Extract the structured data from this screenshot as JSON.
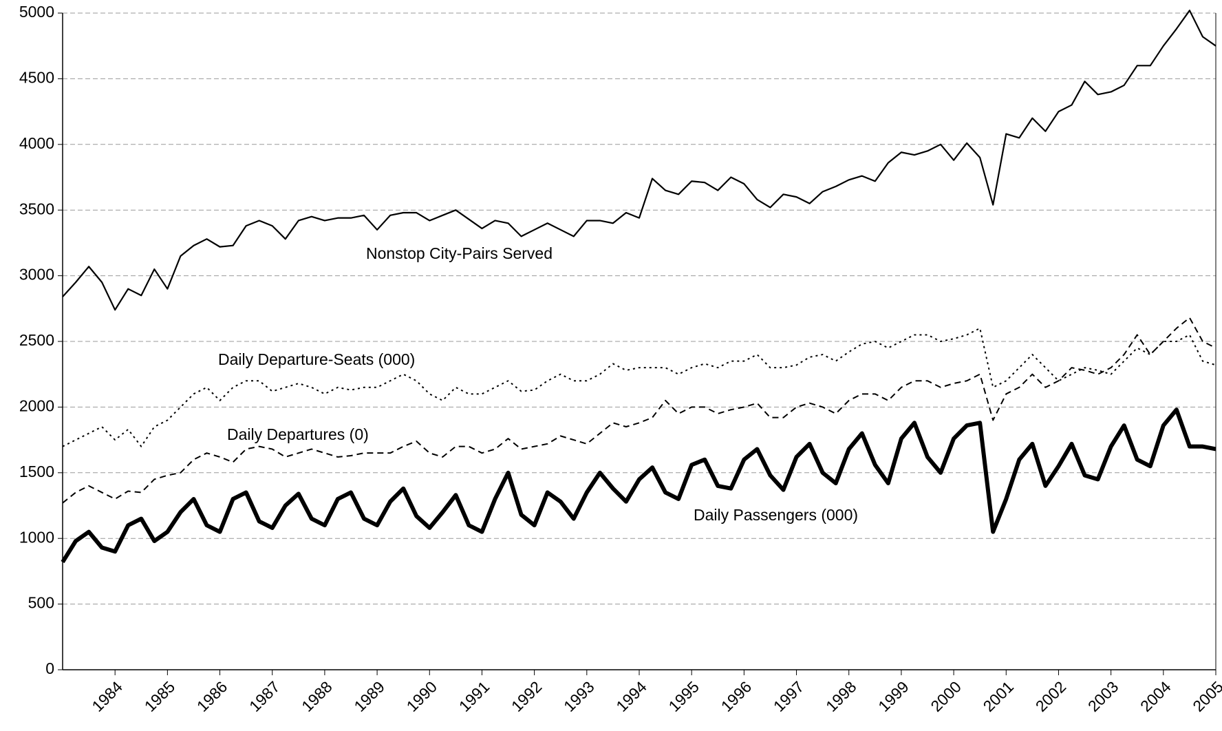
{
  "chart_data": {
    "type": "line",
    "x": [
      1983,
      1983.25,
      1983.5,
      1983.75,
      1984,
      1984.25,
      1984.5,
      1984.75,
      1985,
      1985.25,
      1985.5,
      1985.75,
      1986,
      1986.25,
      1986.5,
      1986.75,
      1987,
      1987.25,
      1987.5,
      1987.75,
      1988,
      1988.25,
      1988.5,
      1988.75,
      1989,
      1989.25,
      1989.5,
      1989.75,
      1990,
      1990.25,
      1990.5,
      1990.75,
      1991,
      1991.25,
      1991.5,
      1991.75,
      1992,
      1992.25,
      1992.5,
      1992.75,
      1993,
      1993.25,
      1993.5,
      1993.75,
      1994,
      1994.25,
      1994.5,
      1994.75,
      1995,
      1995.25,
      1995.5,
      1995.75,
      1996,
      1996.25,
      1996.5,
      1996.75,
      1997,
      1997.25,
      1997.5,
      1997.75,
      1998,
      1998.25,
      1998.5,
      1998.75,
      1999,
      1999.25,
      1999.5,
      1999.75,
      2000,
      2000.25,
      2000.5,
      2000.75,
      2001,
      2001.25,
      2001.5,
      2001.75,
      2002,
      2002.25,
      2002.5,
      2002.75,
      2003,
      2003.25,
      2003.5,
      2003.75,
      2004,
      2004.25,
      2004.5,
      2004.75,
      2005
    ],
    "series": [
      {
        "name": "Nonstop City-Pairs Served",
        "color": "#000000",
        "style": "solid",
        "values": [
          2840,
          2950,
          3070,
          2950,
          2740,
          2900,
          2850,
          3050,
          2900,
          3150,
          3230,
          3280,
          3220,
          3230,
          3380,
          3420,
          3380,
          3280,
          3420,
          3450,
          3420,
          3440,
          3440,
          3460,
          3350,
          3460,
          3480,
          3480,
          3420,
          3460,
          3500,
          3430,
          3360,
          3420,
          3400,
          3300,
          3350,
          3400,
          3350,
          3300,
          3420,
          3420,
          3400,
          3480,
          3440,
          3740,
          3650,
          3620,
          3720,
          3710,
          3650,
          3750,
          3700,
          3580,
          3520,
          3620,
          3600,
          3550,
          3640,
          3680,
          3730,
          3760,
          3720,
          3860,
          3940,
          3920,
          3950,
          4000,
          3880,
          4010,
          3900,
          3540,
          4080,
          4050,
          4200,
          4100,
          4250,
          4300,
          4480,
          4380,
          4400,
          4450,
          4600,
          4600,
          4750,
          4880,
          5020,
          4820,
          4750
        ]
      },
      {
        "name": "Daily Departure-Seats (000)",
        "color": "#000000",
        "style": "dotted",
        "values": [
          1700,
          1750,
          1800,
          1850,
          1750,
          1830,
          1700,
          1850,
          1900,
          2000,
          2100,
          2150,
          2050,
          2150,
          2200,
          2200,
          2120,
          2150,
          2180,
          2150,
          2100,
          2150,
          2130,
          2150,
          2150,
          2200,
          2250,
          2200,
          2100,
          2050,
          2150,
          2100,
          2100,
          2150,
          2200,
          2120,
          2130,
          2200,
          2250,
          2200,
          2200,
          2250,
          2330,
          2280,
          2300,
          2300,
          2300,
          2250,
          2300,
          2330,
          2300,
          2350,
          2350,
          2400,
          2300,
          2300,
          2320,
          2380,
          2400,
          2350,
          2420,
          2480,
          2500,
          2450,
          2500,
          2550,
          2550,
          2500,
          2520,
          2550,
          2600,
          2150,
          2200,
          2300,
          2400,
          2300,
          2200,
          2250,
          2300,
          2280,
          2250,
          2350,
          2450,
          2400,
          2500,
          2500,
          2550,
          2350,
          2320
        ]
      },
      {
        "name": "Daily Departures (0)",
        "color": "#000000",
        "style": "dashed",
        "values": [
          1270,
          1350,
          1400,
          1350,
          1300,
          1360,
          1350,
          1450,
          1480,
          1500,
          1600,
          1650,
          1620,
          1580,
          1680,
          1700,
          1680,
          1620,
          1650,
          1680,
          1650,
          1620,
          1630,
          1650,
          1650,
          1650,
          1700,
          1740,
          1650,
          1620,
          1700,
          1700,
          1650,
          1680,
          1760,
          1680,
          1700,
          1720,
          1780,
          1750,
          1720,
          1800,
          1880,
          1850,
          1880,
          1920,
          2050,
          1950,
          2000,
          2000,
          1950,
          1980,
          2000,
          2030,
          1920,
          1920,
          2000,
          2030,
          2000,
          1950,
          2050,
          2100,
          2100,
          2050,
          2150,
          2200,
          2200,
          2150,
          2180,
          2200,
          2250,
          1900,
          2100,
          2150,
          2250,
          2150,
          2200,
          2300,
          2280,
          2250,
          2300,
          2400,
          2550,
          2400,
          2500,
          2600,
          2680,
          2500,
          2450
        ]
      },
      {
        "name": "Daily Passengers (000)",
        "color": "#000000",
        "style": "thick",
        "values": [
          820,
          980,
          1050,
          930,
          900,
          1100,
          1150,
          980,
          1050,
          1200,
          1300,
          1100,
          1050,
          1300,
          1350,
          1130,
          1080,
          1250,
          1340,
          1150,
          1100,
          1300,
          1350,
          1150,
          1100,
          1280,
          1380,
          1170,
          1080,
          1200,
          1330,
          1100,
          1050,
          1300,
          1500,
          1180,
          1100,
          1350,
          1280,
          1150,
          1350,
          1500,
          1380,
          1280,
          1450,
          1540,
          1350,
          1300,
          1560,
          1600,
          1400,
          1380,
          1600,
          1680,
          1480,
          1370,
          1620,
          1720,
          1500,
          1420,
          1680,
          1800,
          1560,
          1420,
          1760,
          1880,
          1620,
          1500,
          1760,
          1860,
          1880,
          1050,
          1300,
          1600,
          1720,
          1400,
          1550,
          1720,
          1480,
          1450,
          1700,
          1860,
          1600,
          1550,
          1860,
          1980,
          1700,
          1700,
          1680
        ]
      }
    ],
    "xlim": [
      1983,
      2005
    ],
    "xticks": [
      1984,
      1985,
      1986,
      1987,
      1988,
      1989,
      1990,
      1991,
      1992,
      1993,
      1994,
      1995,
      1996,
      1997,
      1998,
      1999,
      2000,
      2001,
      2002,
      2003,
      2004,
      2005
    ],
    "ylim": [
      0,
      5000
    ],
    "yticks": [
      0,
      500,
      1000,
      1500,
      2000,
      2500,
      3000,
      3500,
      4000,
      4500,
      5000
    ],
    "grid": true
  }
}
